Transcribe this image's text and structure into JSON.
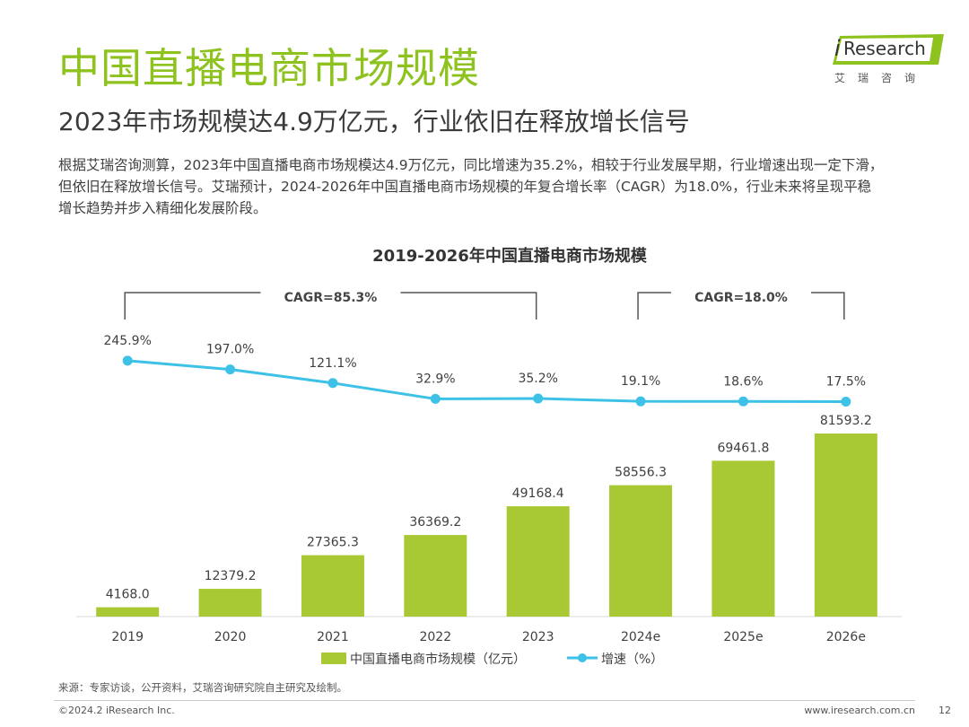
{
  "header": {
    "title": "中国直播电商市场规模",
    "subtitle": "2023年市场规模达4.9万亿元，行业依旧在释放增长信号",
    "body_lines": [
      "根据艾瑞咨询测算，2023年中国直播电商市场规模达4.9万亿元，同比增速为35.2%，相较于行业发展早期，行业增速出现一定下滑，",
      "但依旧在释放增长信号。艾瑞预计，2024-2026年中国直播电商市场规模的年复合增长率（CAGR）为18.0%，行业未来将呈现平稳",
      "增长趋势并步入精细化发展阶段。"
    ]
  },
  "logo": {
    "mark": "i",
    "name": "Research",
    "cn": "艾瑞咨询",
    "accent": "#8dc21f"
  },
  "chart_data": {
    "type": "bar",
    "title": "2019-2026年中国直播电商市场规模",
    "categories": [
      "2019",
      "2020",
      "2021",
      "2022",
      "2023",
      "2024e",
      "2025e",
      "2026e"
    ],
    "series": [
      {
        "name": "中国直播电商市场规模（亿元）",
        "type": "bar",
        "color": "#a8c933",
        "values": [
          4168.0,
          12379.2,
          27365.3,
          36369.2,
          49168.4,
          58556.3,
          69461.8,
          81593.2
        ],
        "labels": [
          "4168.0",
          "12379.2",
          "27365.3",
          "36369.2",
          "49168.4",
          "58556.3",
          "69461.8",
          "81593.2"
        ]
      },
      {
        "name": "增速（%）",
        "type": "line",
        "color": "#3ec1e6",
        "values": [
          245.9,
          197.0,
          121.1,
          32.9,
          35.2,
          19.1,
          18.6,
          17.5
        ],
        "labels": [
          "245.9%",
          "197.0%",
          "121.1%",
          "32.9%",
          "35.2%",
          "19.1%",
          "18.6%",
          "17.5%"
        ]
      }
    ],
    "brackets": [
      {
        "label": "CAGR=85.3%",
        "from": "2019",
        "to": "2023"
      },
      {
        "label": "CAGR=18.0%",
        "from": "2024e",
        "to": "2026e"
      }
    ],
    "legend_position": "bottom"
  },
  "footer": {
    "source": "来源：专家访谈，公开资料，艾瑞咨询研究院自主研究及绘制。",
    "copyright": "©2024.2 iResearch Inc.",
    "website": "www.iresearch.com.cn",
    "page": "12"
  }
}
